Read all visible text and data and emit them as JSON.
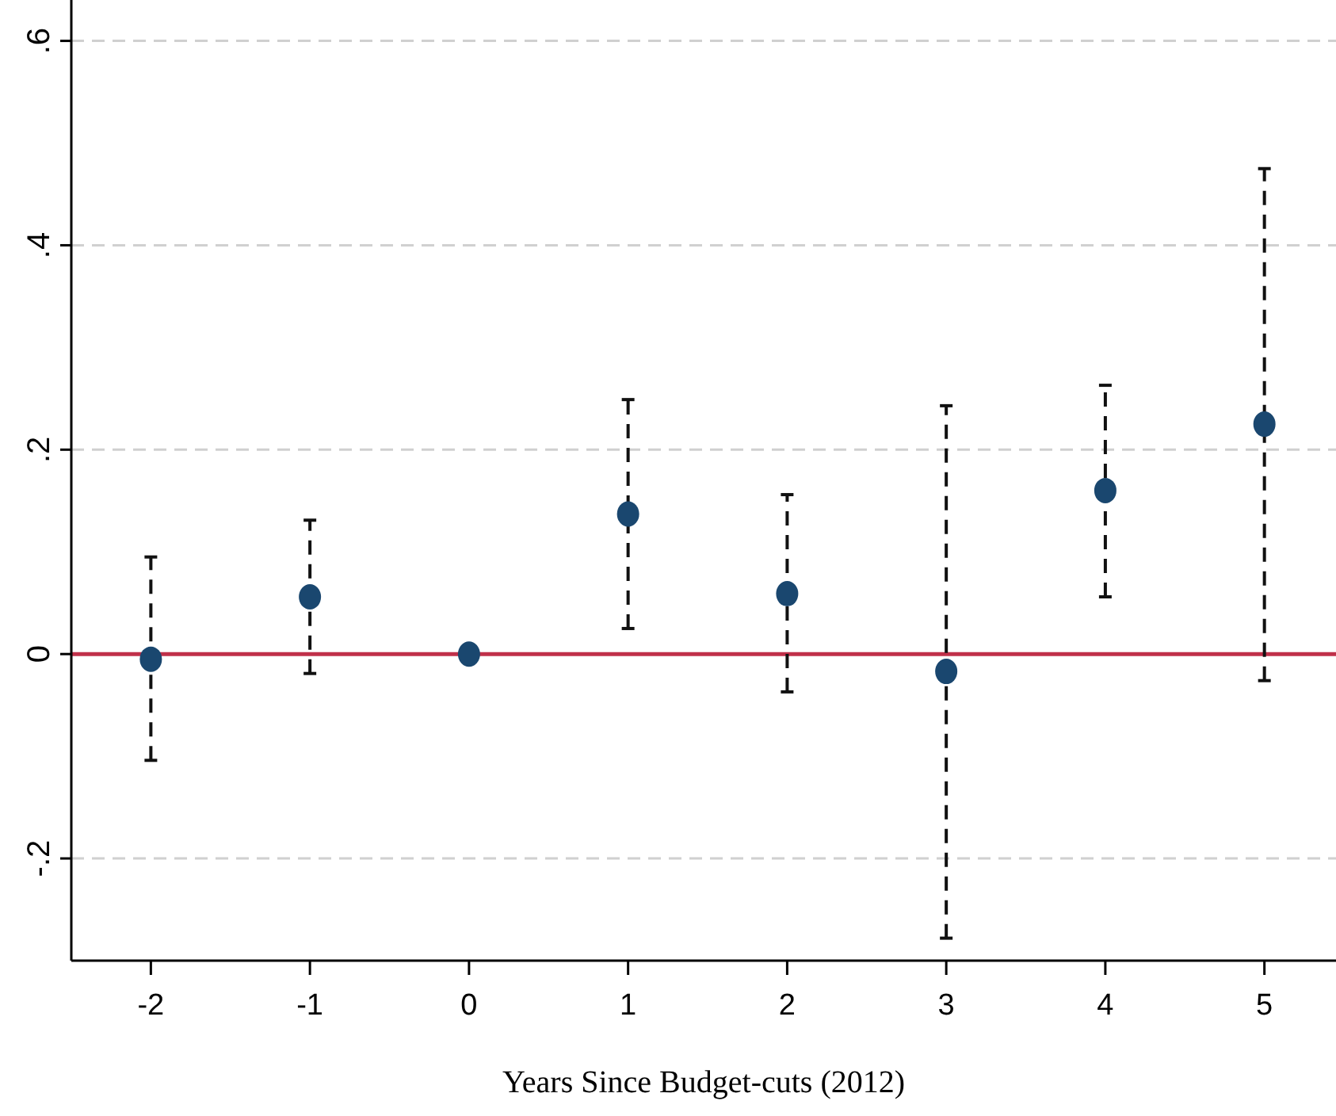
{
  "chart_data": {
    "type": "scatter",
    "xlabel": "Years Since Budget-cuts (2012)",
    "x": [
      -2,
      -1,
      0,
      1,
      2,
      3,
      4,
      5
    ],
    "series": [
      {
        "color": "#1a476f",
        "values": [
          -0.005,
          0.056,
          0,
          0.137,
          0.059,
          -0.017,
          0.16,
          0.225
        ],
        "errors": [
          [
            -0.104,
            0.095
          ],
          [
            -0.019,
            0.131
          ],
          null,
          [
            0.025,
            0.249
          ],
          [
            -0.037,
            0.156
          ],
          [
            -0.278,
            0.243
          ],
          [
            0.056,
            0.263
          ],
          [
            -0.026,
            0.475
          ]
        ]
      }
    ],
    "xlim": [
      -2.5,
      5.45
    ],
    "xticks": [
      -2,
      -1,
      0,
      1,
      2,
      3,
      4,
      5
    ],
    "ylim": [
      -0.3,
      0.64
    ],
    "yticks": [
      {
        "value": -0.2,
        "label": "-.2"
      },
      {
        "value": 0,
        "label": "0"
      },
      {
        "value": 0.2,
        "label": ".2"
      },
      {
        "value": 0.4,
        "label": ".4"
      },
      {
        "value": 0.6,
        "label": ".6"
      }
    ],
    "grid": "y",
    "marker": "circle",
    "ref_lines": [
      {
        "axis": "y",
        "value": 0,
        "color": "#c0304a"
      }
    ]
  }
}
